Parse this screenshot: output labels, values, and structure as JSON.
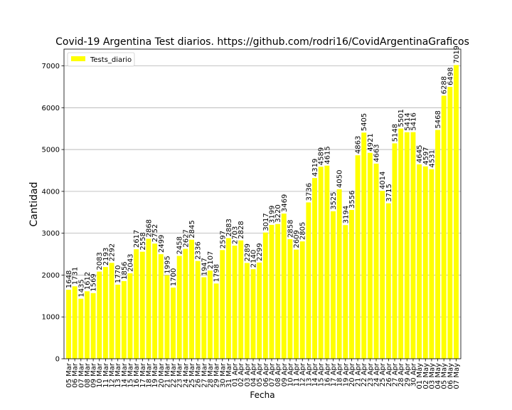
{
  "chart_data": {
    "type": "bar",
    "title": "Covid-19 Argentina Test diarios. https://github.com/rodri16/CovidArgentinaGraficos",
    "xlabel": "Fecha",
    "ylabel": "Cantidad",
    "ylim": [
      0,
      7400
    ],
    "yticks": [
      "0",
      "1000",
      "2000",
      "3000",
      "4000",
      "5000",
      "6000",
      "7000"
    ],
    "grid": "y",
    "legend": {
      "placement": "top-left",
      "entries": [
        {
          "label": "Tests_diario",
          "color": "#ffff00"
        }
      ]
    },
    "series": [
      {
        "name": "Tests_diario",
        "color": "#ffff00"
      }
    ],
    "categories": [
      "05 Mar",
      "06 Mar",
      "07 Mar",
      "08 Mar",
      "09 Mar",
      "10 Mar",
      "11 Mar",
      "12 Mar",
      "13 Mar",
      "14 Mar",
      "15 Mar",
      "16 Mar",
      "17 Mar",
      "18 Mar",
      "19 Mar",
      "20 Mar",
      "21 Mar",
      "22 Mar",
      "23 Mar",
      "24 Mar",
      "25 Mar",
      "26 Mar",
      "27 Mar",
      "28 Mar",
      "29 Mar",
      "30 Mar",
      "31 Mar",
      "01 Apr",
      "02 Apr",
      "03 Apr",
      "04 Apr",
      "05 Apr",
      "06 Apr",
      "07 Apr",
      "08 Apr",
      "09 Apr",
      "10 Apr",
      "11 Apr",
      "12 Apr",
      "13 Apr",
      "14 Apr",
      "15 Apr",
      "16 Apr",
      "17 Apr",
      "18 Apr",
      "19 Apr",
      "20 Apr",
      "21 Apr",
      "22 Apr",
      "23 Apr",
      "24 Apr",
      "25 Apr",
      "26 Apr",
      "27 Apr",
      "28 Apr",
      "29 Apr",
      "30 Apr",
      "01 May",
      "02 May",
      "03 May",
      "04 May",
      "05 May",
      "06 May",
      "07 May"
    ],
    "values": [
      1648,
      1731,
      1435,
      1612,
      1569,
      2083,
      2193,
      2292,
      1770,
      1856,
      2043,
      2617,
      2558,
      2868,
      2752,
      2499,
      1995,
      1700,
      2458,
      2627,
      2845,
      2336,
      1947,
      2107,
      1798,
      2597,
      2883,
      2703,
      2828,
      2289,
      2140,
      2299,
      3017,
      3199,
      3220,
      3469,
      2858,
      2609,
      2805,
      3736,
      4319,
      4589,
      4615,
      3525,
      4050,
      3194,
      3556,
      4863,
      5405,
      4921,
      4663,
      4014,
      3715,
      5148,
      5501,
      5414,
      5416,
      4645,
      4597,
      4531,
      5468,
      6288,
      6498,
      7019
    ]
  }
}
